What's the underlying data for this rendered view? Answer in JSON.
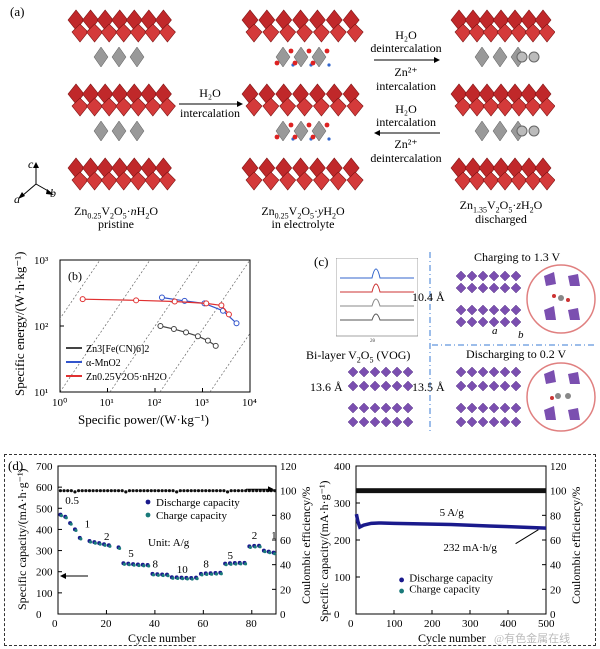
{
  "panel_a": {
    "letter": "(a)",
    "arrow1": {
      "line1": "H₂O",
      "line2": "intercalation"
    },
    "arrow_top": {
      "line1": "H₂O",
      "line2": "deintercalation",
      "line3": "Zn²⁺",
      "line4": "intercalation"
    },
    "arrow_bottom": {
      "line1": "H₂O",
      "line2": "intercalation",
      "line3": "Zn²⁺",
      "line4": "deintercalation"
    },
    "struct1": {
      "formula": "Zn0.25V2O5·nH2O",
      "caption": "pristine"
    },
    "struct2": {
      "formula": "Zn0.25V2O5·yH2O",
      "caption": "in electrolyte"
    },
    "struct3": {
      "formula": "Zn1.35V2O5·zH2O",
      "caption": "discharged"
    },
    "axes": {
      "c": "c",
      "a": "a",
      "b": "b"
    }
  },
  "panel_b": {
    "letter": "(b)",
    "legend": [
      "Zn3[Fe(CN)6]2",
      "α-MnO2",
      "Zn0.25V2O5·nH2O"
    ]
  },
  "panel_c": {
    "letter": "(c)",
    "charging": "Charging to 1.3 V",
    "discharging": "Discharging to 0.2 V",
    "bilayer": "Bi-layer V2O5 (VOG)",
    "d1": "10.4 Å",
    "d2": "13.6 Å",
    "d3": "13.5 Å",
    "axis_a": "a",
    "axis_b": "b"
  },
  "panel_d": {
    "letter": "(d)",
    "left": {
      "ylabel": "Specific capacity/(mA·h·g⁻¹)",
      "y2label": "Coulombic efficiency/%",
      "xlabel": "Cycle number",
      "legend1": "Discharge capacity",
      "legend2": "Charge capacity",
      "unit": "Unit: A/g",
      "rates": [
        "0.5",
        "1",
        "2",
        "5",
        "8",
        "10",
        "8",
        "5",
        "2",
        "1"
      ]
    },
    "right": {
      "ylabel": "Specific capacity/(mA·h·g⁻¹)",
      "y2label": "Coulombic efficiency/%",
      "xlabel": "Cycle number",
      "rate": "5 A/g",
      "final": "232 mA·h/g",
      "legend1": "Discharge capacity",
      "legend2": "Charge capacity"
    }
  },
  "watermark": "@有色金属在线",
  "chart_data": [
    {
      "type": "line",
      "xlabel": "Specific power/(W·kg⁻¹)",
      "ylabel": "Specific energy/(W·h·kg⁻¹)",
      "xscale": "log",
      "yscale": "log",
      "xlim": [
        1,
        10000
      ],
      "ylim": [
        10,
        1000
      ],
      "xticks": [
        "10⁰",
        "10¹",
        "10²",
        "10³",
        "10⁴"
      ],
      "yticks": [
        "10¹",
        "10²",
        "10³"
      ],
      "series": [
        {
          "name": "Zn3[Fe(CN)6]2",
          "color": "#444444",
          "x": [
            130,
            250,
            450,
            800,
            1300,
            1900
          ],
          "y": [
            100,
            90,
            80,
            70,
            60,
            50
          ]
        },
        {
          "name": "α-MnO2",
          "color": "#3355cc",
          "x": [
            140,
            420,
            1100,
            2700,
            5200
          ],
          "y": [
            270,
            240,
            220,
            170,
            110
          ]
        },
        {
          "name": "Zn0.25V2O5·nH2O",
          "color": "#e03030",
          "x": [
            3,
            40,
            260,
            1200,
            2500,
            3600
          ],
          "y": [
            255,
            245,
            235,
            220,
            205,
            150
          ]
        }
      ]
    },
    {
      "type": "scatter",
      "xlabel": "Cycle number",
      "ylabel": "Specific capacity/(mA·h·g⁻¹)",
      "y2label": "Coulombic efficiency/%",
      "xlim": [
        0,
        90
      ],
      "ylim": [
        0,
        700
      ],
      "y2lim": [
        0,
        120
      ],
      "xticks": [
        0,
        20,
        40,
        60,
        80
      ],
      "yticks": [
        0,
        100,
        200,
        300,
        400,
        500,
        600,
        700
      ],
      "y2ticks": [
        0,
        20,
        40,
        60,
        80,
        100,
        120
      ],
      "series": [
        {
          "name": "Discharge capacity",
          "color": "#1a1a8c",
          "x": [
            1,
            3,
            5,
            7,
            9,
            13,
            15,
            17,
            19,
            21,
            25,
            27,
            29,
            31,
            33,
            35,
            37,
            39,
            41,
            43,
            45,
            47,
            49,
            51,
            53,
            55,
            57,
            59,
            61,
            63,
            65,
            67,
            69,
            71,
            73,
            75,
            77,
            79,
            81,
            83,
            85,
            87,
            89
          ],
          "y": [
            470,
            460,
            430,
            400,
            360,
            345,
            340,
            335,
            330,
            325,
            315,
            240,
            238,
            236,
            234,
            233,
            232,
            190,
            188,
            187,
            186,
            174,
            173,
            172,
            171,
            170,
            172,
            190,
            192,
            193,
            194,
            195,
            238,
            240,
            241,
            242,
            242,
            320,
            322,
            323,
            300,
            295,
            290
          ]
        },
        {
          "name": "Coulombic efficiency",
          "color": "#111111",
          "x": [
            5,
            15,
            25,
            35,
            45,
            55,
            65,
            75,
            85
          ],
          "y": [
            100,
            100,
            99,
            100,
            100,
            100,
            100,
            100,
            100
          ]
        }
      ]
    },
    {
      "type": "scatter",
      "xlabel": "Cycle number",
      "ylabel": "Specific capacity/(mA·h·g⁻¹)",
      "y2label": "Coulombic efficiency/%",
      "xlim": [
        0,
        500
      ],
      "ylim": [
        0,
        400
      ],
      "y2lim": [
        0,
        120
      ],
      "xticks": [
        0,
        100,
        200,
        300,
        400,
        500
      ],
      "yticks": [
        0,
        100,
        200,
        300,
        400
      ],
      "y2ticks": [
        0,
        20,
        40,
        60,
        80,
        100,
        120
      ],
      "series": [
        {
          "name": "Discharge capacity",
          "color": "#1a1a8c",
          "x": [
            1,
            5,
            10,
            20,
            40,
            60,
            100,
            150,
            200,
            250,
            300,
            350,
            400,
            450,
            500
          ],
          "y": [
            270,
            250,
            235,
            240,
            245,
            246,
            245,
            244,
            243,
            242,
            240,
            238,
            236,
            234,
            232
          ]
        },
        {
          "name": "Coulombic efficiency",
          "color": "#111111",
          "x": [
            5,
            50,
            100,
            200,
            300,
            400,
            500
          ],
          "y": [
            100,
            100,
            100,
            100,
            100,
            100,
            100
          ]
        }
      ]
    }
  ]
}
